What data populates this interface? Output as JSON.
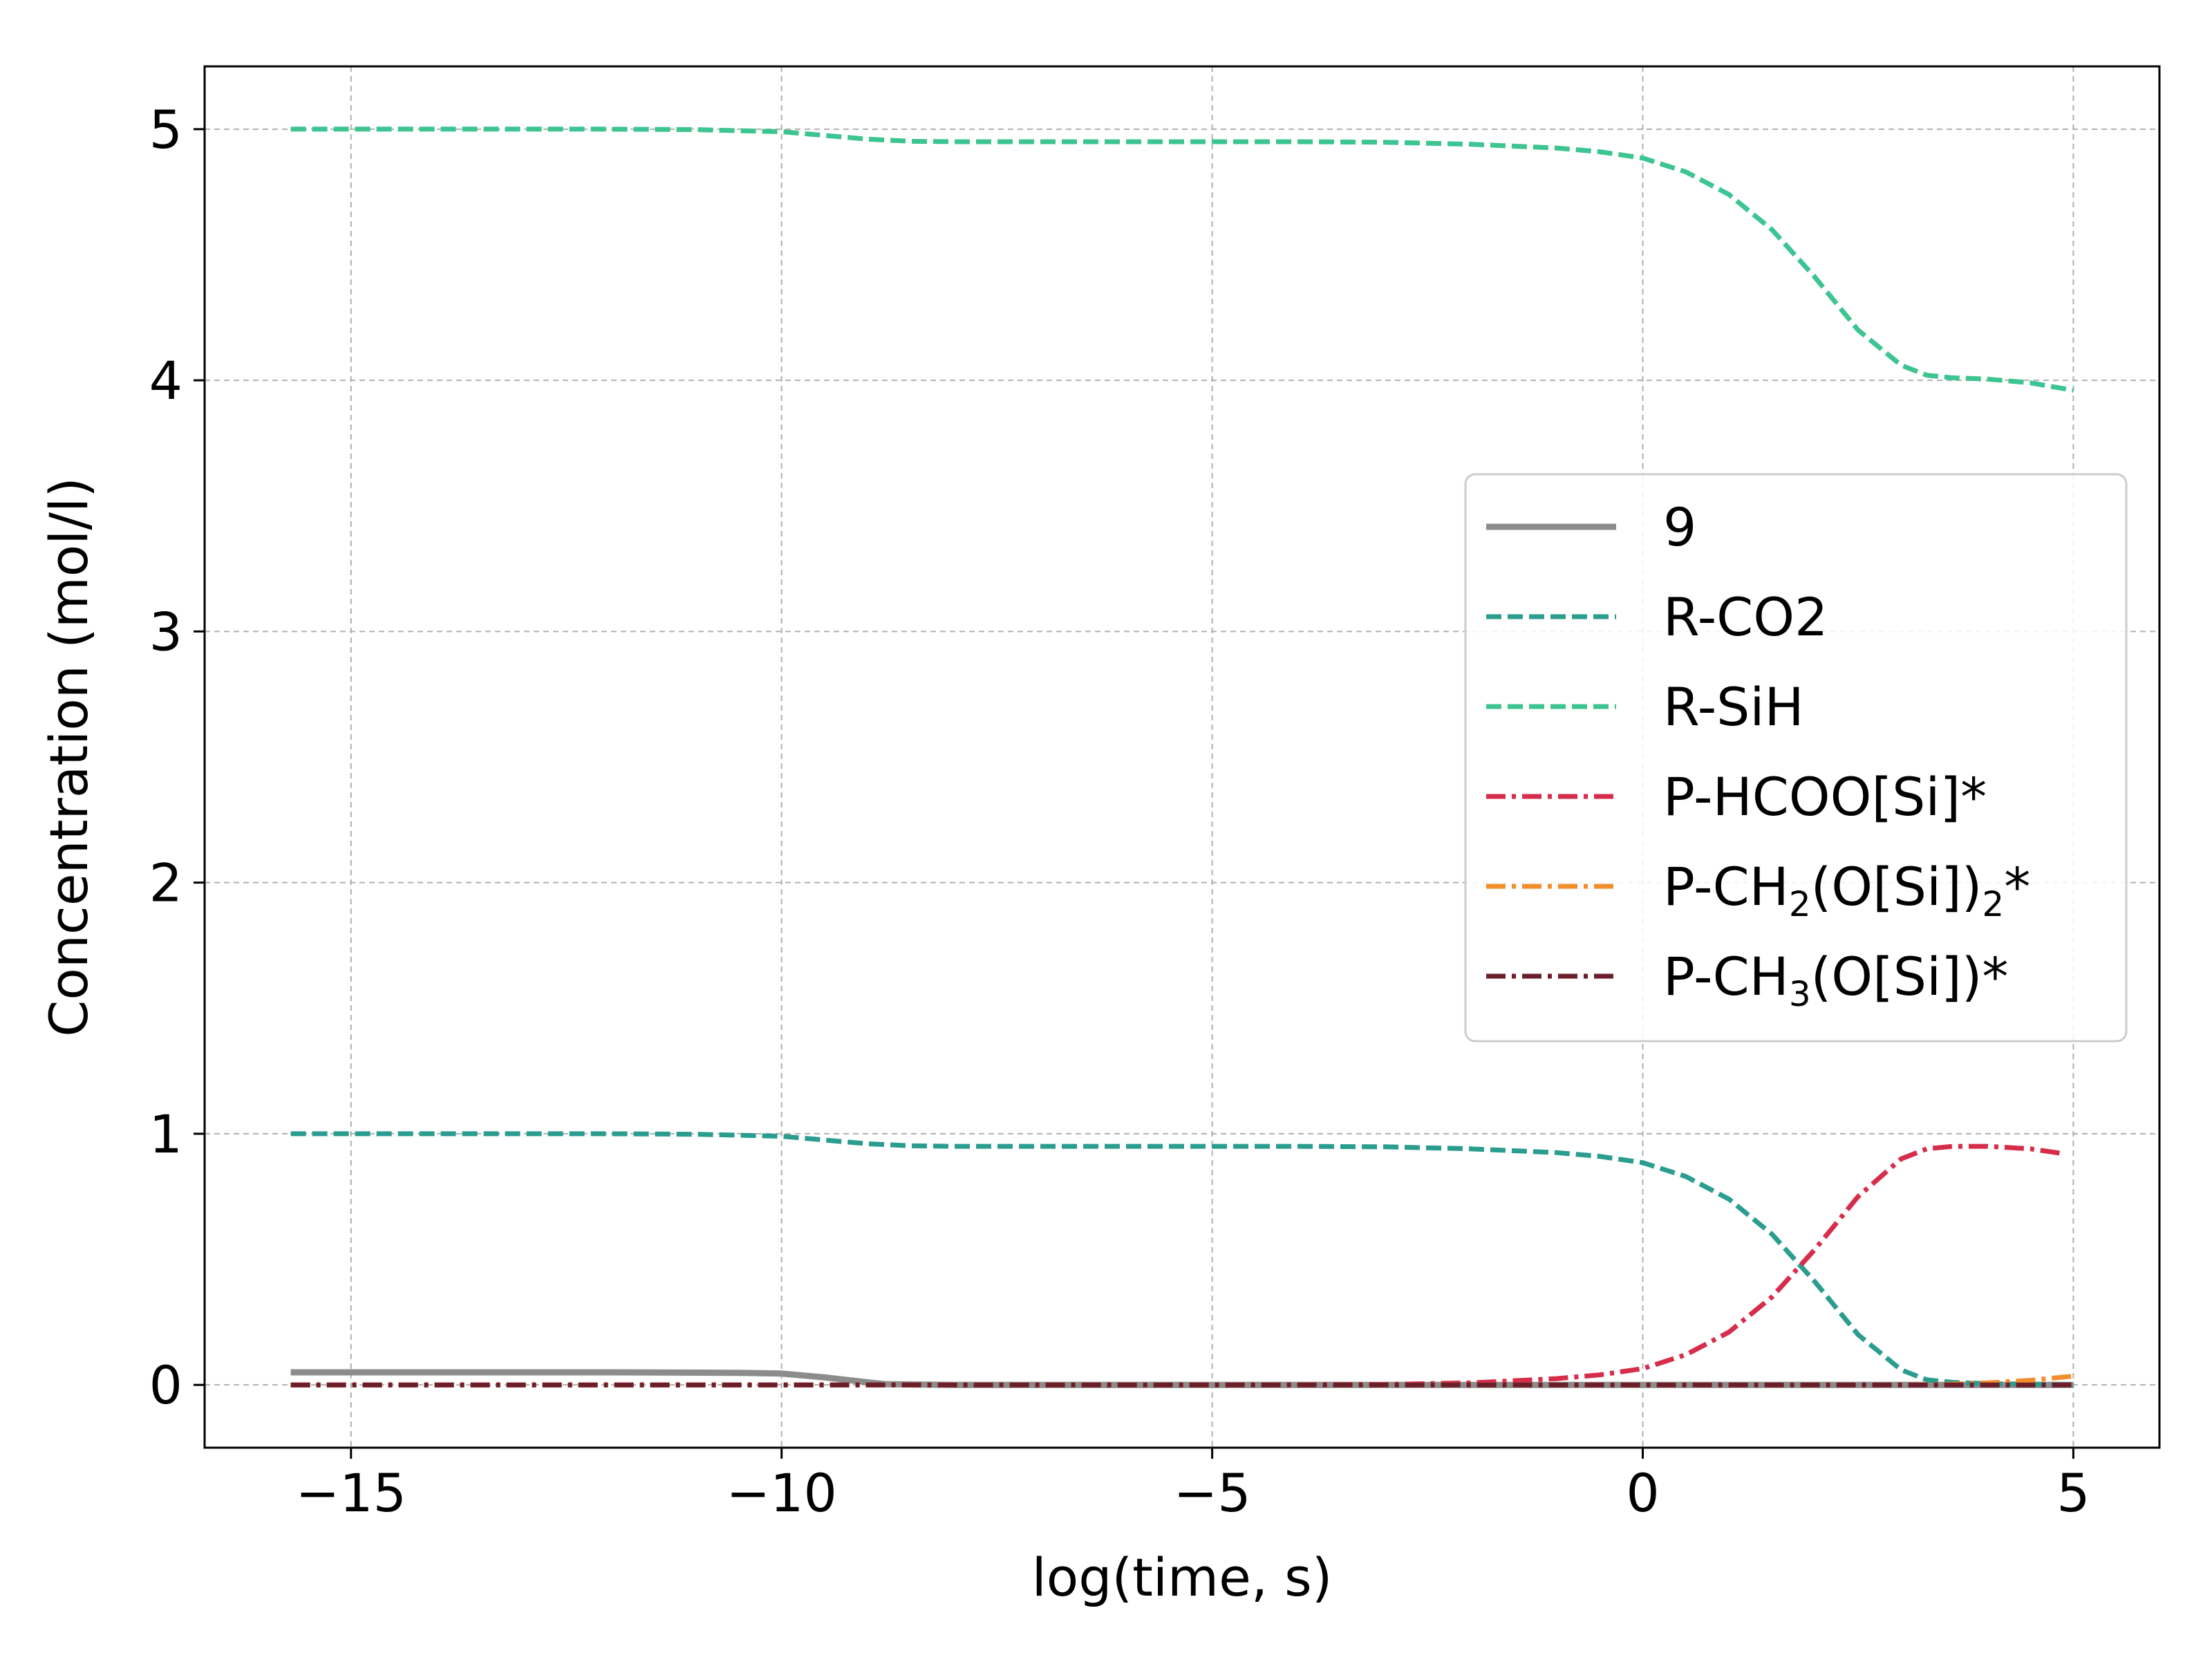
{
  "chart_data": {
    "type": "line",
    "title": "",
    "xlabel": "log(time, s)",
    "ylabel": "Concentration (mol/l)",
    "xlim": [
      -16.7,
      6.0
    ],
    "ylim": [
      -0.25,
      5.25
    ],
    "x_ticks": [
      {
        "value": -15,
        "label": "−15"
      },
      {
        "value": -10,
        "label": "−10"
      },
      {
        "value": -5,
        "label": "−5"
      },
      {
        "value": 0,
        "label": "0"
      },
      {
        "value": 5,
        "label": "5"
      }
    ],
    "y_ticks": [
      {
        "value": 0,
        "label": "0"
      },
      {
        "value": 1,
        "label": "1"
      },
      {
        "value": 2,
        "label": "2"
      },
      {
        "value": 3,
        "label": "3"
      },
      {
        "value": 4,
        "label": "4"
      },
      {
        "value": 5,
        "label": "5"
      }
    ],
    "grid": true,
    "legend_position": "center-right",
    "series": [
      {
        "name": "9",
        "legend_main": "9",
        "legend_sub": "",
        "legend_tail": "",
        "color": "#8c8c8c",
        "style": "solid",
        "x": [
          -15.7,
          -14,
          -12,
          -10.5,
          -10,
          -9.5,
          -9.0,
          -8.8,
          -8,
          -6,
          -4,
          -2,
          0,
          2,
          4,
          5
        ],
        "y": [
          0.05,
          0.05,
          0.05,
          0.048,
          0.045,
          0.03,
          0.01,
          0.003,
          0.0,
          0.0,
          0.0,
          0.0,
          0.0,
          0.0,
          0.0,
          0.0
        ]
      },
      {
        "name": "R-CO2",
        "legend_main": "R-CO2",
        "legend_sub": "",
        "legend_tail": "",
        "color": "#2a9d8f",
        "style": "dashed",
        "x": [
          -15.7,
          -14,
          -12,
          -11,
          -10,
          -9.5,
          -9,
          -8.5,
          -8,
          -7,
          -6,
          -5,
          -4,
          -3,
          -2,
          -1,
          -0.5,
          0,
          0.5,
          1,
          1.5,
          2,
          2.5,
          3,
          3.3,
          3.6,
          4,
          4.5,
          5
        ],
        "y": [
          1.0,
          1.0,
          1.0,
          0.998,
          0.99,
          0.975,
          0.96,
          0.952,
          0.95,
          0.95,
          0.95,
          0.95,
          0.95,
          0.948,
          0.94,
          0.925,
          0.91,
          0.885,
          0.83,
          0.74,
          0.6,
          0.41,
          0.2,
          0.06,
          0.02,
          0.01,
          0.005,
          0.003,
          0.0
        ]
      },
      {
        "name": "R-SiH",
        "legend_main": "R-SiH",
        "legend_sub": "",
        "legend_tail": "",
        "color": "#3cc491",
        "style": "dashed",
        "x": [
          -15.7,
          -14,
          -12,
          -11,
          -10,
          -9.5,
          -9,
          -8.5,
          -8,
          -7,
          -6,
          -5,
          -4,
          -3,
          -2,
          -1,
          -0.5,
          0,
          0.5,
          1,
          1.5,
          2,
          2.5,
          3,
          3.3,
          3.6,
          4,
          4.5,
          5
        ],
        "y": [
          5.0,
          5.0,
          5.0,
          4.998,
          4.99,
          4.975,
          4.96,
          4.952,
          4.95,
          4.95,
          4.95,
          4.95,
          4.95,
          4.948,
          4.94,
          4.925,
          4.91,
          4.885,
          4.83,
          4.74,
          4.6,
          4.41,
          4.2,
          4.06,
          4.02,
          4.01,
          4.005,
          3.99,
          3.96
        ]
      },
      {
        "name": "P-HCOO[Si]*",
        "legend_main": "P-HCOO[Si]*",
        "legend_sub": "",
        "legend_tail": "",
        "color": "#d62d4a",
        "style": "dashdot",
        "x": [
          -15.7,
          -10,
          -5,
          -3,
          -2,
          -1,
          -0.5,
          0,
          0.5,
          1,
          1.5,
          2,
          2.5,
          3,
          3.3,
          3.6,
          4,
          4.5,
          4.9
        ],
        "y": [
          0.0,
          0.0,
          0.0,
          0.002,
          0.008,
          0.025,
          0.04,
          0.065,
          0.12,
          0.21,
          0.35,
          0.54,
          0.75,
          0.9,
          0.94,
          0.95,
          0.95,
          0.94,
          0.92
        ]
      },
      {
        "name": "P-CH2(O[Si])2*",
        "legend_main": "P-CH",
        "legend_sub": "2",
        "legend_tail": "(O[Si])",
        "legend_sub2": "2",
        "legend_tail2": "*",
        "color": "#f28e2b",
        "style": "dashdot",
        "x": [
          -15.7,
          -10,
          -5,
          0,
          3,
          3.5,
          4,
          4.5,
          5
        ],
        "y": [
          0.0,
          0.0,
          0.0,
          0.0,
          0.0,
          0.002,
          0.008,
          0.018,
          0.035
        ]
      },
      {
        "name": "P-CH3(O[Si])*",
        "legend_main": "P-CH",
        "legend_sub": "3",
        "legend_tail": "(O[Si])*",
        "legend_sub2": "",
        "legend_tail2": "",
        "color": "#6b1f2a",
        "style": "dashdot",
        "x": [
          -15.7,
          -10,
          -5,
          0,
          5
        ],
        "y": [
          0.0,
          0.0,
          0.0,
          0.0,
          0.0
        ]
      }
    ]
  }
}
